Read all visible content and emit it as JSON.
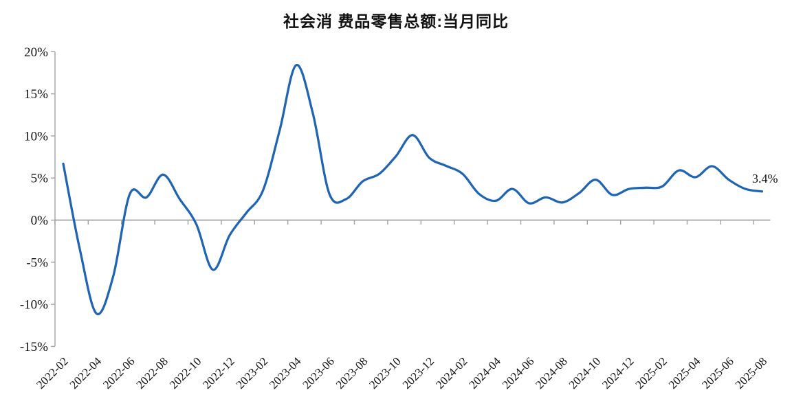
{
  "chart_data": {
    "type": "line",
    "title": "社会消 费品零售总额:当月同比",
    "end_label": "3.4%",
    "x": [
      "2022-02",
      "2022-03",
      "2022-04",
      "2022-05",
      "2022-06",
      "2022-07",
      "2022-08",
      "2022-09",
      "2022-10",
      "2022-11",
      "2022-12",
      "2023-01",
      "2023-02",
      "2023-03",
      "2023-04",
      "2023-05",
      "2023-06",
      "2023-07",
      "2023-08",
      "2023-09",
      "2023-10",
      "2023-11",
      "2023-12",
      "2024-01",
      "2024-02",
      "2024-03",
      "2024-04",
      "2024-05",
      "2024-06",
      "2024-07",
      "2024-08",
      "2024-09",
      "2024-10",
      "2024-11",
      "2024-12",
      "2025-01",
      "2025-02",
      "2025-03",
      "2025-04",
      "2025-05",
      "2025-06",
      "2025-07",
      "2025-08"
    ],
    "values": [
      6.7,
      -3.5,
      -11.1,
      -6.7,
      3.1,
      2.7,
      5.4,
      2.5,
      -0.5,
      -5.9,
      -1.8,
      0.85,
      3.5,
      10.6,
      18.4,
      12.7,
      3.1,
      2.5,
      4.6,
      5.5,
      7.6,
      10.1,
      7.4,
      6.45,
      5.5,
      3.1,
      2.3,
      3.7,
      2.0,
      2.7,
      2.1,
      3.2,
      4.8,
      3.0,
      3.7,
      3.85,
      4.0,
      5.9,
      5.1,
      6.4,
      4.8,
      3.7,
      3.4
    ],
    "x_tick_labels": [
      "2022-02",
      "2022-04",
      "2022-06",
      "2022-08",
      "2022-10",
      "2022-12",
      "2023-02",
      "2023-04",
      "2023-06",
      "2023-08",
      "2023-10",
      "2023-12",
      "2024-02",
      "2024-04",
      "2024-06",
      "2024-08",
      "2024-10",
      "2024-12",
      "2025-02",
      "2025-04",
      "2025-06",
      "2025-08"
    ],
    "y_ticks": [
      20,
      15,
      10,
      5,
      0,
      -5,
      -10,
      -15
    ],
    "y_tick_labels": [
      "20%",
      "15%",
      "10%",
      "5%",
      "0%",
      "-5%",
      "-10%",
      "-15%"
    ],
    "ylim": [
      -15,
      20
    ],
    "xlabel": "",
    "ylabel": "",
    "grid": false,
    "legend_position": "none",
    "line_color": "#2064b4",
    "axis_color": "#a3a3a3",
    "text_color": "#111111"
  }
}
